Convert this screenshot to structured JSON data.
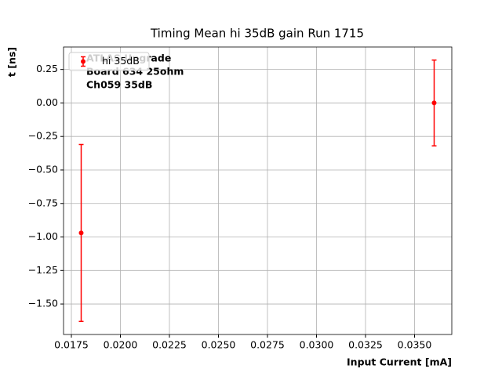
{
  "chart_data": {
    "type": "errorbar",
    "title": "Timing Mean hi 35dB gain Run 1715",
    "xlabel": "Input Current [mA]",
    "ylabel": "t [ns]",
    "annotation": [
      "ATLAS Upgrade",
      "Board 634 25ohm",
      "Ch059 35dB"
    ],
    "x": [
      0.018,
      0.036
    ],
    "series": [
      {
        "name": "hi 35dB",
        "color": "#ff0000",
        "values": [
          -0.97,
          0.0
        ],
        "errors": [
          0.66,
          0.32
        ]
      }
    ],
    "xlim": [
      0.0171,
      0.0369
    ],
    "xticks": [
      {
        "value": 0.0175,
        "label": "0.0175"
      },
      {
        "value": 0.02,
        "label": "0.0200"
      },
      {
        "value": 0.0225,
        "label": "0.0225"
      },
      {
        "value": 0.025,
        "label": "0.0250"
      },
      {
        "value": 0.0275,
        "label": "0.0275"
      },
      {
        "value": 0.03,
        "label": "0.0300"
      },
      {
        "value": 0.0325,
        "label": "0.0325"
      },
      {
        "value": 0.035,
        "label": "0.0350"
      }
    ],
    "ylim": [
      -1.7275,
      0.4175
    ],
    "yticks": [
      0.25,
      {
        "value": 0,
        "label": "0.00"
      },
      {
        "value": -0.25,
        "label": "−0.25"
      },
      {
        "value": -0.5,
        "label": "−0.50"
      },
      {
        "value": -0.75,
        "label": "−0.75"
      },
      {
        "value": -1,
        "label": "−1.00"
      },
      {
        "value": -1.25,
        "label": "−1.25"
      },
      {
        "value": -1.5,
        "label": "−1.50"
      }
    ],
    "grid": true,
    "legend": "upper left"
  }
}
